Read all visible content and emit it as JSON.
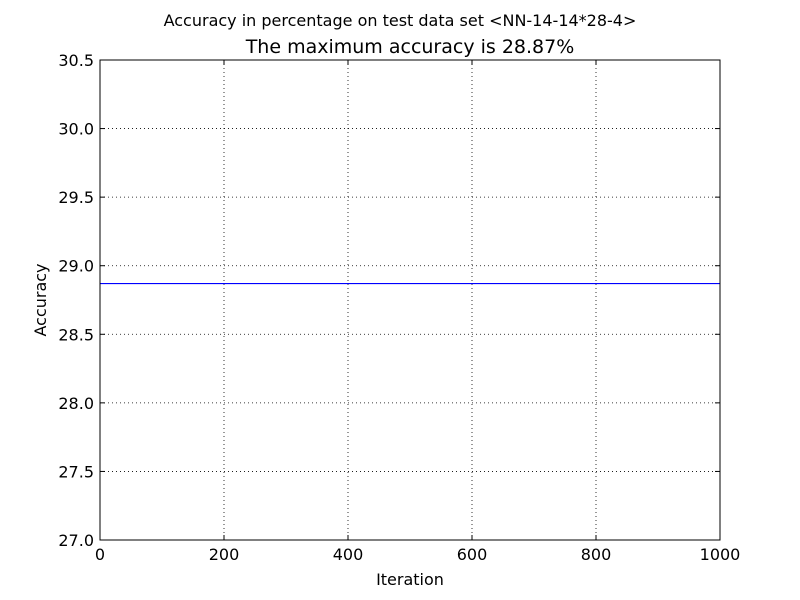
{
  "chart_data": {
    "type": "line",
    "suptitle": "Accuracy in percentage on test data set <NN-14-14*28-4>",
    "title": "The maximum accuracy is 28.87%",
    "xlabel": "Iteration",
    "ylabel": "Accuracy",
    "xlim": [
      0,
      1000
    ],
    "ylim": [
      27.0,
      30.5
    ],
    "xticks": [
      0,
      200,
      400,
      600,
      800,
      1000
    ],
    "xtick_labels": [
      "0",
      "200",
      "400",
      "600",
      "800",
      "1000"
    ],
    "yticks": [
      27.0,
      27.5,
      28.0,
      28.5,
      29.0,
      29.5,
      30.0,
      30.5
    ],
    "ytick_labels": [
      "27.0",
      "27.5",
      "28.0",
      "28.5",
      "29.0",
      "29.5",
      "30.0",
      "30.5"
    ],
    "grid": true,
    "series": [
      {
        "color": "#0000ff",
        "x": [
          0,
          1000
        ],
        "y": [
          28.87,
          28.87
        ]
      }
    ]
  }
}
